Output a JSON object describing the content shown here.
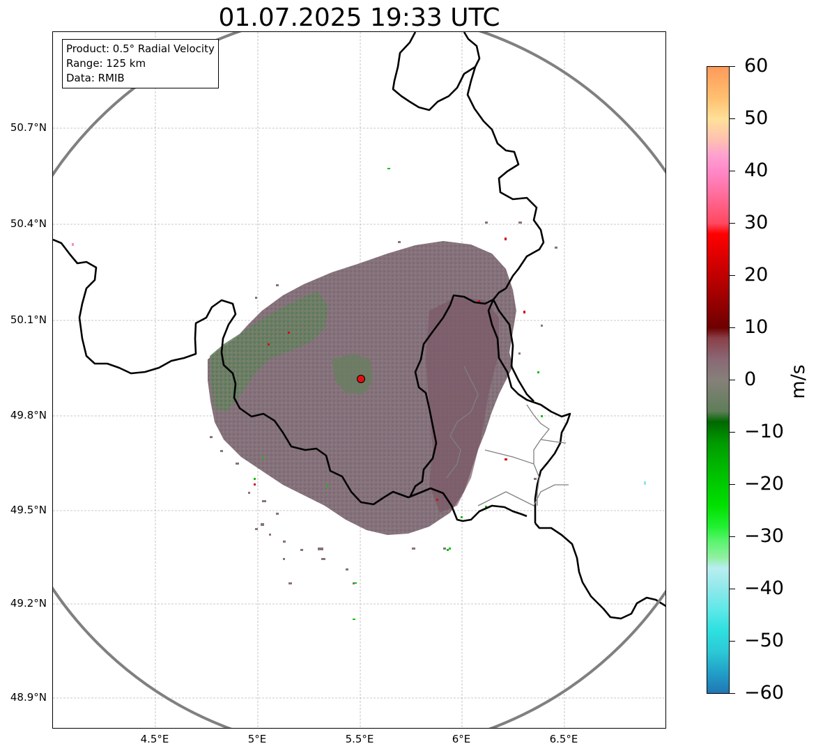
{
  "title": "01.07.2025 19:33 UTC",
  "info": {
    "product": "Product: 0.5° Radial Velocity",
    "range": "Range: 125 km",
    "data": "Data: RMIB"
  },
  "lat_labels": [
    "50.7°N",
    "50.4°N",
    "50.1°N",
    "49.8°N",
    "49.5°N",
    "49.2°N",
    "48.9°N"
  ],
  "lon_labels": [
    "4.5°E",
    "5°E",
    "5.5°E",
    "6°E",
    "6.5°E"
  ],
  "colorbar": {
    "unit": "m/s",
    "ticks": [
      "60",
      "50",
      "40",
      "30",
      "20",
      "10",
      "0",
      "−10",
      "−20",
      "−30",
      "−40",
      "−50",
      "−60"
    ],
    "min": -60,
    "max": 60,
    "stops": [
      {
        "v": -60,
        "c": "#1f77b4"
      },
      {
        "v": -56,
        "c": "#22a0c8"
      },
      {
        "v": -52,
        "c": "#2bc9d6"
      },
      {
        "v": -48,
        "c": "#2ee0e0"
      },
      {
        "v": -44,
        "c": "#5ee8e8"
      },
      {
        "v": -40,
        "c": "#8fe8ea"
      },
      {
        "v": -36,
        "c": "#b8eef0"
      },
      {
        "v": -34,
        "c": "#90f0a0"
      },
      {
        "v": -31,
        "c": "#5cf470"
      },
      {
        "v": -28,
        "c": "#20f030"
      },
      {
        "v": -24,
        "c": "#00e000"
      },
      {
        "v": -18,
        "c": "#00c000"
      },
      {
        "v": -12,
        "c": "#009a00"
      },
      {
        "v": -8,
        "c": "#006800"
      },
      {
        "v": -6,
        "c": "#5e7e58"
      },
      {
        "v": 0,
        "c": "#86807a"
      },
      {
        "v": 4,
        "c": "#8a6875"
      },
      {
        "v": 8,
        "c": "#8a4048"
      },
      {
        "v": 10,
        "c": "#6e0000"
      },
      {
        "v": 16,
        "c": "#a00000"
      },
      {
        "v": 22,
        "c": "#d00000"
      },
      {
        "v": 28,
        "c": "#ff0000"
      },
      {
        "v": 30,
        "c": "#ff4860"
      },
      {
        "v": 36,
        "c": "#ff70a0"
      },
      {
        "v": 40,
        "c": "#ff88c8"
      },
      {
        "v": 43,
        "c": "#ffa0d0"
      },
      {
        "v": 46,
        "c": "#ffc0b0"
      },
      {
        "v": 50,
        "c": "#ffe098"
      },
      {
        "v": 54,
        "c": "#ffc070"
      },
      {
        "v": 60,
        "c": "#ff9a5a"
      }
    ]
  },
  "map": {
    "radar_site": {
      "lon": 5.505,
      "lat": 49.914
    },
    "range_ring_km": 125,
    "extent": {
      "lon_min": 4.0,
      "lon_max": 7.0,
      "lat_min": 48.8,
      "lat_max": 51.0
    },
    "colors": {
      "echo_main": "#86727d",
      "echo_green": "#5f7f5d",
      "echo_dark": "#7c5c68",
      "border": "#000000",
      "ring": "#808080",
      "site": "#e01010"
    }
  }
}
